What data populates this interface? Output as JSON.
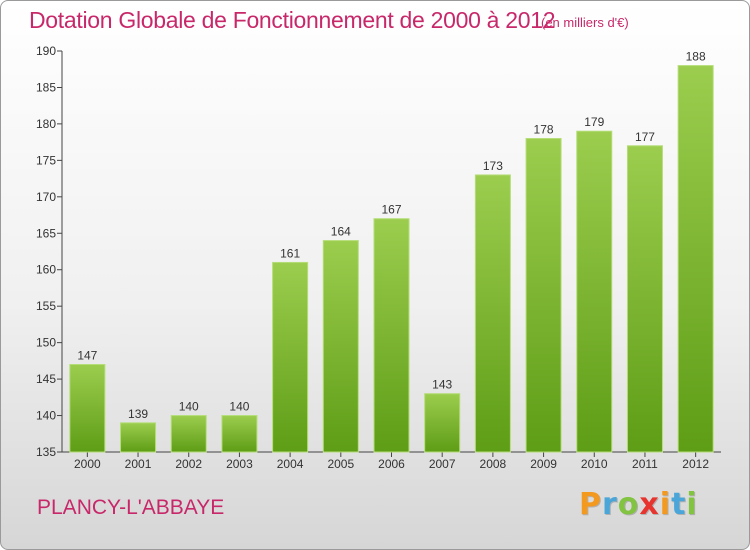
{
  "header": {
    "title": "Dotation Globale de Fonctionnement de 2000 à 2012",
    "unit": "(en milliers d'€)"
  },
  "footer": {
    "commune": "PLANCY-L'ABBAYE",
    "logo": [
      "P",
      "r",
      "o",
      "x",
      "i",
      "t",
      "i"
    ]
  },
  "colors": {
    "title": "#c8286a",
    "bar_top": "#9ccd4e",
    "bar_bottom": "#5e9d16"
  },
  "chart_data": {
    "type": "bar",
    "title": "Dotation Globale de Fonctionnement de 2000 à 2012",
    "subtitle": "(en milliers d'€)",
    "xlabel": "",
    "ylabel": "",
    "categories": [
      "2000",
      "2001",
      "2002",
      "2003",
      "2004",
      "2005",
      "2006",
      "2007",
      "2008",
      "2009",
      "2010",
      "2011",
      "2012"
    ],
    "values": [
      147,
      139,
      140,
      140,
      161,
      164,
      167,
      143,
      173,
      178,
      179,
      177,
      188
    ],
    "ylim": [
      135,
      190
    ],
    "yticks": [
      135,
      140,
      145,
      150,
      155,
      160,
      165,
      170,
      175,
      180,
      185,
      190
    ],
    "grid": false,
    "legend": "none"
  }
}
